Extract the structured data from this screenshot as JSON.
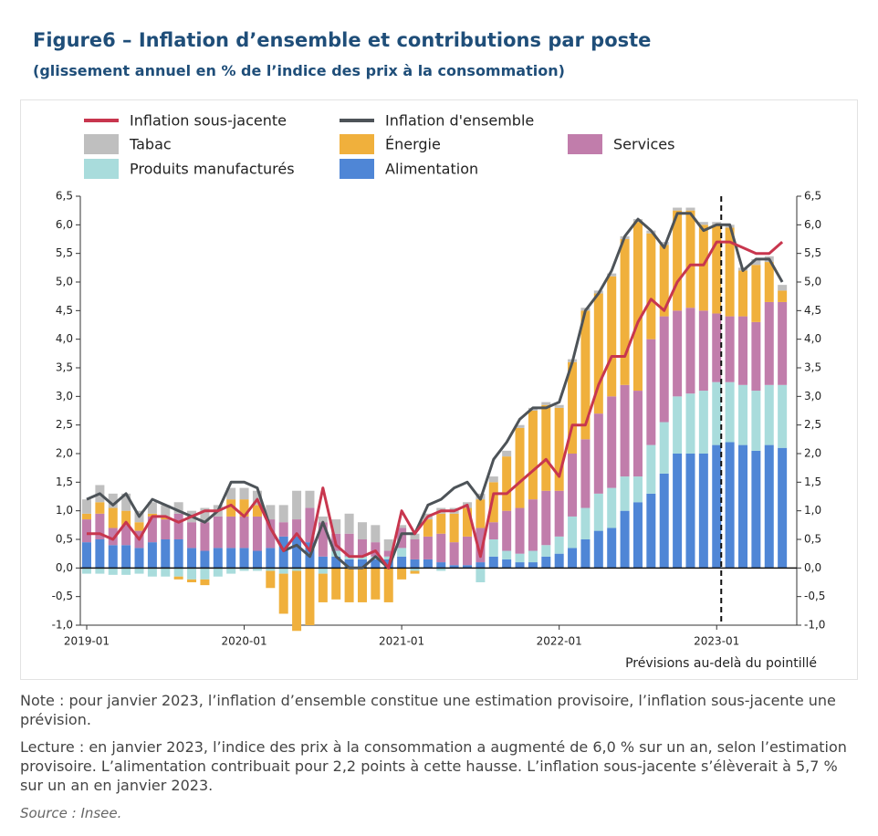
{
  "title": "Figure6 – Inflation d’ensemble et contributions par poste",
  "subtitle": "(glissement annuel en % de l’indice des prix à la consommation)",
  "chart_data": {
    "type": "bar",
    "categories": [
      "2019-01",
      null,
      null,
      null,
      null,
      null,
      null,
      null,
      null,
      null,
      null,
      null,
      "2020-01",
      null,
      null,
      null,
      null,
      null,
      null,
      null,
      null,
      null,
      null,
      null,
      "2021-01",
      null,
      null,
      null,
      null,
      null,
      null,
      null,
      null,
      null,
      null,
      null,
      "2022-01",
      null,
      null,
      null,
      null,
      null,
      null,
      null,
      null,
      null,
      null,
      null,
      "2023-01",
      null,
      null,
      null,
      null,
      null
    ],
    "ylim": [
      -1,
      6.5
    ],
    "yticks": [
      {
        "value": -1,
        "label": "-1,0"
      },
      {
        "value": -0.5,
        "label": "-0,5"
      },
      {
        "value": 0,
        "label": "0,0"
      },
      {
        "value": 0.5,
        "label": "0,5"
      },
      {
        "value": 1,
        "label": "1,0"
      },
      {
        "value": 1.5,
        "label": "1,5"
      },
      {
        "value": 2,
        "label": "2,0"
      },
      {
        "value": 2.5,
        "label": "2,5"
      },
      {
        "value": 3,
        "label": "3,0"
      },
      {
        "value": 3.5,
        "label": "3,5"
      },
      {
        "value": 4,
        "label": "4,0"
      },
      {
        "value": 4.5,
        "label": "4,5"
      },
      {
        "value": 5,
        "label": "5,0"
      },
      {
        "value": 5.5,
        "label": "5,5"
      },
      {
        "value": 6,
        "label": "6,0"
      },
      {
        "value": 6.5,
        "label": "6,5"
      }
    ],
    "y2lim": [
      -1,
      6.5
    ],
    "y2ticks": [
      {
        "value": -1,
        "label": "-1,0"
      },
      {
        "value": -0.5,
        "label": "-0,5"
      },
      {
        "value": 0,
        "label": "0,0"
      },
      {
        "value": 0.5,
        "label": "0,5"
      },
      {
        "value": 1,
        "label": "1,0"
      },
      {
        "value": 1.5,
        "label": "1,5"
      },
      {
        "value": 2,
        "label": "2,0"
      },
      {
        "value": 2.5,
        "label": "2,5"
      },
      {
        "value": 3,
        "label": "3,0"
      },
      {
        "value": 3.5,
        "label": "3,5"
      },
      {
        "value": 4,
        "label": "4,0"
      },
      {
        "value": 4.5,
        "label": "4,5"
      },
      {
        "value": 5,
        "label": "5,0"
      },
      {
        "value": 5.5,
        "label": "5,5"
      },
      {
        "value": 6,
        "label": "6,0"
      },
      {
        "value": 6.5,
        "label": "6,5"
      }
    ],
    "stacked": true,
    "annotation": {
      "text": "Prévisions au-delà du pointillé",
      "x": "2023-01"
    },
    "series": [
      {
        "name": "Inflation sous-jacente",
        "type": "line",
        "color": "#c8364e",
        "values": [
          0.6,
          0.6,
          0.5,
          0.8,
          0.5,
          0.9,
          0.9,
          0.8,
          0.9,
          1.0,
          1.0,
          1.1,
          0.9,
          1.2,
          0.7,
          0.3,
          0.6,
          0.3,
          1.4,
          0.4,
          0.2,
          0.2,
          0.3,
          0.0,
          1.0,
          0.6,
          0.9,
          1.0,
          1.0,
          1.1,
          0.2,
          1.3,
          1.3,
          1.5,
          1.7,
          1.9,
          1.6,
          2.5,
          2.5,
          3.2,
          3.7,
          3.7,
          4.3,
          4.7,
          4.5,
          5.0,
          5.3,
          5.3,
          5.7,
          5.7,
          5.6,
          5.5,
          5.5,
          5.7
        ]
      },
      {
        "name": "Inflation d'ensemble",
        "type": "line",
        "color": "#4d5358",
        "values": [
          1.2,
          1.3,
          1.1,
          1.3,
          0.9,
          1.2,
          1.1,
          1.0,
          0.9,
          0.8,
          1.0,
          1.5,
          1.5,
          1.4,
          0.7,
          0.3,
          0.4,
          0.2,
          0.8,
          0.2,
          0.0,
          0.0,
          0.2,
          0.0,
          0.6,
          0.6,
          1.1,
          1.2,
          1.4,
          1.5,
          1.2,
          1.9,
          2.2,
          2.6,
          2.8,
          2.8,
          2.9,
          3.6,
          4.5,
          4.8,
          5.2,
          5.8,
          6.1,
          5.9,
          5.6,
          6.2,
          6.2,
          5.9,
          6.0,
          6.0,
          5.2,
          5.4,
          5.4,
          5.0
        ]
      },
      {
        "name": "Alimentation",
        "type": "bar",
        "color": "#4f86d6",
        "values": [
          0.45,
          0.5,
          0.4,
          0.4,
          0.35,
          0.45,
          0.5,
          0.5,
          0.35,
          0.3,
          0.35,
          0.35,
          0.35,
          0.3,
          0.35,
          0.55,
          0.55,
          0.45,
          0.2,
          0.2,
          0.15,
          0.15,
          0.15,
          0.15,
          0.2,
          0.15,
          0.15,
          0.1,
          0.05,
          0.05,
          0.1,
          0.2,
          0.15,
          0.1,
          0.1,
          0.2,
          0.25,
          0.35,
          0.5,
          0.65,
          0.7,
          1.0,
          1.15,
          1.3,
          1.65,
          2.0,
          2.0,
          2.0,
          2.15,
          2.2,
          2.15,
          2.05,
          2.15,
          2.1
        ]
      },
      {
        "name": "Produits manufacturés",
        "type": "bar",
        "color": "#a9dcdc",
        "values": [
          -0.1,
          -0.1,
          -0.12,
          -0.12,
          -0.1,
          -0.15,
          -0.15,
          -0.15,
          -0.2,
          -0.2,
          -0.15,
          -0.1,
          -0.05,
          -0.05,
          -0.05,
          -0.1,
          -0.05,
          0.0,
          -0.1,
          0.1,
          0.05,
          0.05,
          0.05,
          0.05,
          0.15,
          -0.05,
          0.0,
          -0.05,
          0.0,
          0.0,
          -0.25,
          0.3,
          0.15,
          0.15,
          0.2,
          0.2,
          0.3,
          0.55,
          0.55,
          0.65,
          0.7,
          0.6,
          0.45,
          0.85,
          0.9,
          1.0,
          1.05,
          1.1,
          1.1,
          1.05,
          1.05,
          1.05,
          1.05,
          1.1
        ]
      },
      {
        "name": "Services",
        "type": "bar",
        "color": "#c17dab",
        "values": [
          0.4,
          0.45,
          0.3,
          0.35,
          0.3,
          0.45,
          0.35,
          0.45,
          0.45,
          0.5,
          0.55,
          0.55,
          0.55,
          0.6,
          0.5,
          0.25,
          0.3,
          0.6,
          0.6,
          0.3,
          0.4,
          0.3,
          0.25,
          0.1,
          0.35,
          0.35,
          0.4,
          0.5,
          0.4,
          0.5,
          0.6,
          0.3,
          0.7,
          0.8,
          0.9,
          0.95,
          0.8,
          1.1,
          1.2,
          1.4,
          1.6,
          1.6,
          1.5,
          1.85,
          1.85,
          1.5,
          1.5,
          1.4,
          1.2,
          1.15,
          1.2,
          1.2,
          1.45,
          1.45
        ]
      },
      {
        "name": "Énergie",
        "type": "bar",
        "color": "#f0b03c",
        "values": [
          0.1,
          0.2,
          0.35,
          0.25,
          0.15,
          0.05,
          0.05,
          -0.05,
          -0.05,
          -0.1,
          0.0,
          0.3,
          0.3,
          0.2,
          -0.3,
          -0.7,
          -1.05,
          -1.0,
          -0.5,
          -0.55,
          -0.6,
          -0.6,
          -0.55,
          -0.6,
          -0.2,
          -0.05,
          0.3,
          0.35,
          0.5,
          0.5,
          0.5,
          0.7,
          0.95,
          1.4,
          1.55,
          1.5,
          1.45,
          1.6,
          2.25,
          2.1,
          2.1,
          2.55,
          2.95,
          1.85,
          1.25,
          1.75,
          1.7,
          1.5,
          1.55,
          1.55,
          0.8,
          1.0,
          0.7,
          0.2
        ]
      },
      {
        "name": "Tabac",
        "type": "bar",
        "color": "#bfbfbf",
        "values": [
          0.25,
          0.3,
          0.25,
          0.3,
          0.2,
          0.2,
          0.2,
          0.2,
          0.2,
          0.25,
          0.2,
          0.2,
          0.2,
          0.25,
          0.25,
          0.3,
          0.5,
          0.3,
          0.1,
          0.25,
          0.35,
          0.3,
          0.3,
          0.2,
          0.05,
          0.1,
          0.1,
          0.1,
          0.1,
          0.1,
          0.1,
          0.1,
          0.1,
          0.05,
          0.05,
          0.05,
          0.05,
          0.05,
          0.05,
          0.05,
          0.05,
          0.05,
          0.05,
          0.05,
          0.05,
          0.05,
          0.05,
          0.05,
          0.05,
          0.05,
          0.05,
          0.1,
          0.1,
          0.1
        ]
      }
    ]
  },
  "notes": [
    "Note : pour janvier 2023, l’inflation d’ensemble constitue une estimation provisoire, l’inflation sous-jacente une prévision.",
    "Lecture : en janvier 2023, l’indice des prix à la consommation a augmenté de 6,0 % sur un an, selon l’estimation provisoire. L’alimentation contribuait pour 2,2 points à cette hausse. L’inflation sous-jacente s’élèverait à 5,7 % sur un an en janvier 2023."
  ],
  "source": "Source : Insee."
}
